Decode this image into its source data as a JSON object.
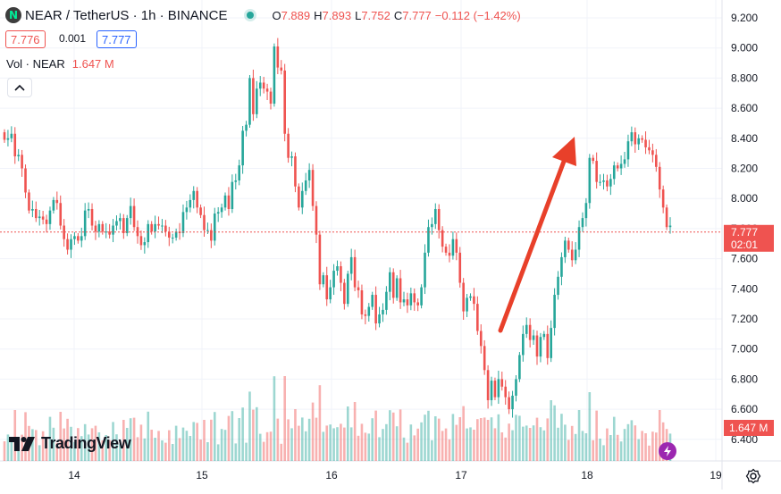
{
  "header": {
    "logo_letter": "N",
    "symbol": "NEAR / TetherUS · 1h · BINANCE",
    "ohlc": {
      "o_label": "O",
      "o": "7.889",
      "h_label": "H",
      "h": "7.893",
      "l_label": "L",
      "l": "7.752",
      "c_label": "C",
      "c": "7.777",
      "change": "−0.112 (−1.42%)"
    }
  },
  "quote": {
    "sell": "7.776",
    "spread": "0.001",
    "buy": "7.777"
  },
  "volume_legend": {
    "label": "Vol · NEAR",
    "value": "1.647 M"
  },
  "branding": {
    "name": "TradingView"
  },
  "price_axis": {
    "ticks": [
      "9.200",
      "9.000",
      "8.800",
      "8.600",
      "8.400",
      "8.200",
      "8.000",
      "7.800",
      "7.600",
      "7.400",
      "7.200",
      "7.000",
      "6.800",
      "6.600",
      "6.400"
    ],
    "last_price": "7.777",
    "countdown": "02:01",
    "volume_badge": "1.647 M"
  },
  "time_axis": {
    "ticks": [
      "14",
      "15",
      "16",
      "17",
      "18",
      "19"
    ]
  },
  "colors": {
    "up": "#26a69a",
    "down": "#ef5350",
    "arrow": "#e8402a",
    "grid": "#f0f3fa"
  },
  "chart_data": {
    "type": "candlestick",
    "title": "NEAR / TetherUS · 1h · BINANCE",
    "xlabel": "",
    "ylabel": "",
    "ylim": [
      6.3,
      9.3
    ],
    "x_ticks": [
      "14",
      "15",
      "16",
      "17",
      "18",
      "19"
    ],
    "series": [
      {
        "values": [
          8.39,
          8.4,
          8.43,
          8.28,
          8.29,
          8.2,
          8.04,
          7.92,
          7.93,
          7.87,
          7.88,
          7.86,
          7.83,
          7.92,
          7.99,
          7.97,
          7.82,
          7.73,
          7.66,
          7.73,
          7.75,
          7.72,
          7.75,
          7.92,
          7.93,
          7.82,
          7.78,
          7.83,
          7.78,
          7.78,
          7.76,
          7.82,
          7.85,
          7.87,
          7.77,
          7.87,
          7.95,
          7.81,
          7.75,
          7.69,
          7.71,
          7.83,
          7.78,
          7.83,
          7.82,
          7.82,
          7.78,
          7.74,
          7.74,
          7.78,
          7.77,
          7.91,
          7.94,
          7.99,
          8.05,
          7.94,
          7.89,
          7.79,
          7.79,
          7.72,
          7.9,
          7.91,
          7.94,
          8.02,
          7.93,
          8.11,
          8.12,
          8.22,
          8.45,
          8.49,
          8.8,
          8.56,
          8.73,
          8.77,
          8.73,
          8.71,
          8.63,
          9.01,
          8.87,
          8.85,
          8.43,
          8.27,
          8.28,
          8.08,
          7.94,
          8.05,
          8.12,
          8.19,
          7.95,
          7.76,
          7.43,
          7.49,
          7.33,
          7.41,
          7.52,
          7.55,
          7.44,
          7.3,
          7.5,
          7.61,
          7.41,
          7.39,
          7.23,
          7.22,
          7.28,
          7.36,
          7.17,
          7.23,
          7.26,
          7.38,
          7.51,
          7.34,
          7.47,
          7.31,
          7.33,
          7.29,
          7.37,
          7.31,
          7.29,
          7.41,
          7.64,
          7.81,
          7.83,
          7.93,
          7.79,
          7.68,
          7.64,
          7.62,
          7.73,
          7.64,
          7.44,
          7.25,
          7.34,
          7.35,
          7.3,
          7.12,
          7.02,
          6.86,
          6.66,
          6.79,
          6.68,
          6.8,
          6.75,
          6.68,
          6.6,
          6.69,
          6.8,
          6.96,
          7.1,
          7.16,
          7.06,
          7.09,
          6.95,
          7.08,
          7.1,
          6.94,
          7.14,
          7.36,
          7.48,
          7.61,
          7.72,
          7.66,
          7.59,
          7.66,
          7.81,
          7.87,
          7.97,
          8.27,
          8.25,
          8.11,
          8.11,
          8.12,
          8.08,
          8.13,
          8.22,
          8.2,
          8.23,
          8.26,
          8.38,
          8.44,
          8.36,
          8.4,
          8.39,
          8.34,
          8.32,
          8.29,
          8.21,
          8.06,
          7.94,
          7.81,
          7.82
        ]
      }
    ],
    "last_price": 7.777
  }
}
